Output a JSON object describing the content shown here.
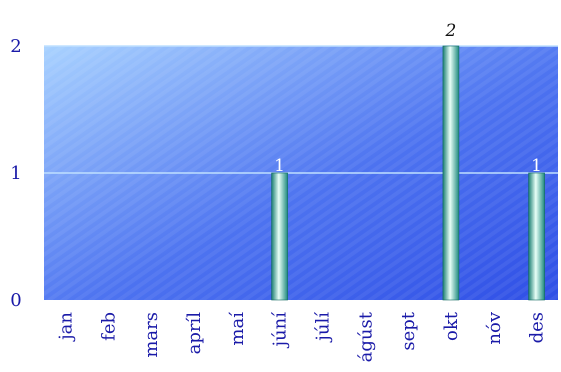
{
  "chart_data": {
    "type": "bar",
    "categories": [
      "jan",
      "feb",
      "mars",
      "apríl",
      "maí",
      "júní",
      "júlí",
      "ágúst",
      "sept",
      "okt",
      "nóv",
      "des"
    ],
    "values": [
      0,
      0,
      0,
      0,
      0,
      1,
      0,
      0,
      0,
      2,
      0,
      1
    ],
    "data_labels": [
      "",
      "",
      "",
      "",
      "",
      "1",
      "",
      "",
      "",
      "2",
      "",
      "1"
    ],
    "y_ticks": [
      "0",
      "1",
      "2"
    ],
    "ylim": [
      0,
      2
    ],
    "grid": true,
    "colors": {
      "plot_light": "#a9d2ff",
      "plot_dark": "#2f4fe6",
      "bar_light": "#e8fff7",
      "bar_mid": "#5cc6b6",
      "bar_dark": "#1a7d72",
      "axis_text": "#1a1aa8",
      "gridline": "#bfe0ff"
    }
  }
}
